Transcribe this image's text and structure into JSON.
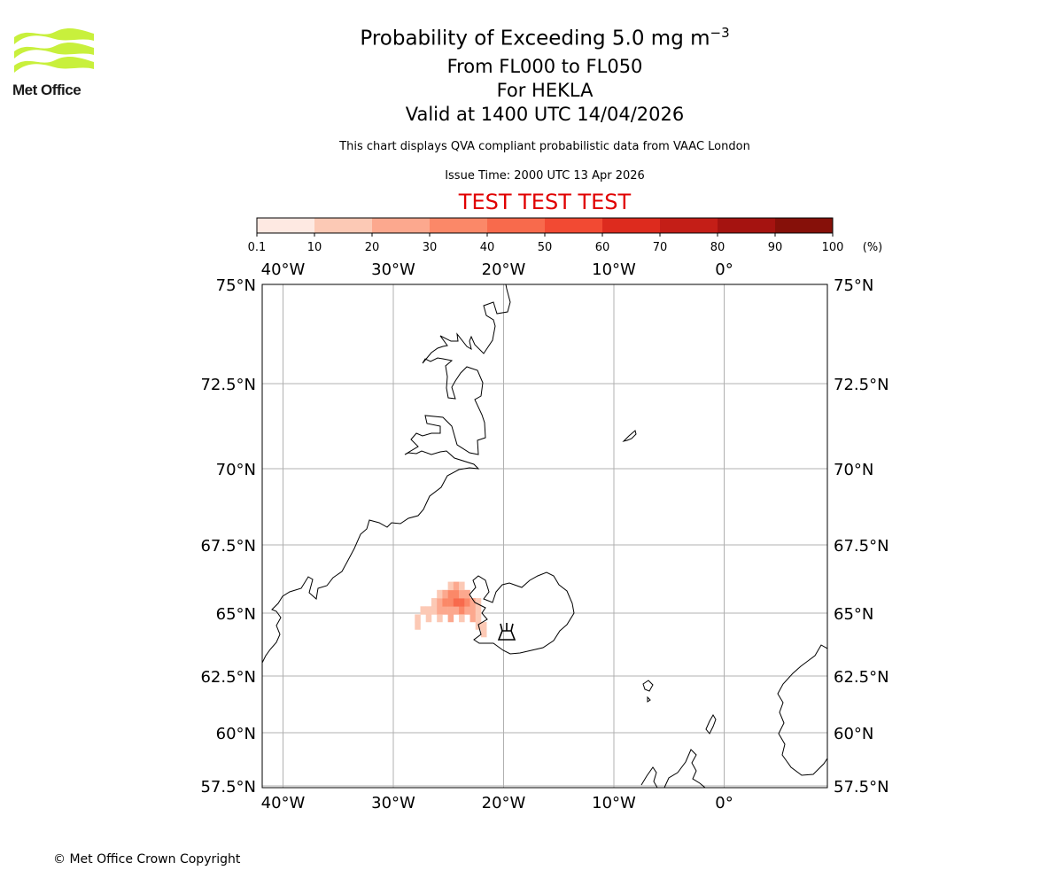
{
  "logo": {
    "text": "Met Office",
    "color": "#c8f03c"
  },
  "header": {
    "title_main": "Probability of Exceeding 5.0 mg m",
    "title_sup": "−3",
    "level_range": "From FL000 to FL050",
    "volcano": "For HEKLA",
    "valid_time": "Valid at 1400 UTC 14/04/2026",
    "description": "This chart displays QVA compliant probabilistic data from VAAC London",
    "issue_time": "Issue Time: 2000 UTC 13 Apr 2026",
    "test_banner": "TEST TEST TEST"
  },
  "colorbar": {
    "ticks": [
      "0.1",
      "10",
      "20",
      "30",
      "40",
      "50",
      "60",
      "70",
      "80",
      "90",
      "100"
    ],
    "unit": "(%)",
    "colors": [
      "#fee9e2",
      "#fcc9b5",
      "#fca88e",
      "#fb8868",
      "#f86a4c",
      "#f24a33",
      "#dd2b1e",
      "#c41e17",
      "#a51310",
      "#861009",
      "#68100a"
    ]
  },
  "map": {
    "lon_labels": [
      "40°W",
      "30°W",
      "20°W",
      "10°W",
      "0°"
    ],
    "lat_labels": [
      "75°N",
      "72.5°N",
      "70°N",
      "67.5°N",
      "65°N",
      "62.5°N",
      "60°N",
      "57.5°N"
    ],
    "lon_values": [
      -40,
      -30,
      -20,
      -10,
      0
    ],
    "lat_values": [
      75,
      72.5,
      70,
      67.5,
      65,
      62.5,
      60,
      57.5
    ],
    "volcano_symbol": "volcano-icon",
    "plume_cells": [
      {
        "lon": -27.3,
        "lat": 65.1,
        "p": 12
      },
      {
        "lon": -26.8,
        "lat": 65.1,
        "p": 15
      },
      {
        "lon": -26.3,
        "lat": 65.1,
        "p": 18
      },
      {
        "lon": -25.8,
        "lat": 65.1,
        "p": 20
      },
      {
        "lon": -25.3,
        "lat": 65.1,
        "p": 24
      },
      {
        "lon": -24.8,
        "lat": 65.1,
        "p": 28
      },
      {
        "lon": -24.3,
        "lat": 65.1,
        "p": 22
      },
      {
        "lon": -23.8,
        "lat": 65.1,
        "p": 30
      },
      {
        "lon": -23.3,
        "lat": 65.1,
        "p": 25
      },
      {
        "lon": -22.8,
        "lat": 65.1,
        "p": 20
      },
      {
        "lon": -22.3,
        "lat": 65.1,
        "p": 14
      },
      {
        "lon": -26.3,
        "lat": 65.4,
        "p": 14
      },
      {
        "lon": -25.8,
        "lat": 65.4,
        "p": 22
      },
      {
        "lon": -25.3,
        "lat": 65.4,
        "p": 30
      },
      {
        "lon": -24.8,
        "lat": 65.4,
        "p": 35
      },
      {
        "lon": -24.3,
        "lat": 65.4,
        "p": 42
      },
      {
        "lon": -23.8,
        "lat": 65.4,
        "p": 40
      },
      {
        "lon": -23.3,
        "lat": 65.4,
        "p": 32
      },
      {
        "lon": -22.8,
        "lat": 65.4,
        "p": 22
      },
      {
        "lon": -22.3,
        "lat": 65.4,
        "p": 16
      },
      {
        "lon": -25.8,
        "lat": 65.7,
        "p": 18
      },
      {
        "lon": -25.3,
        "lat": 65.7,
        "p": 26
      },
      {
        "lon": -24.8,
        "lat": 65.7,
        "p": 34
      },
      {
        "lon": -24.3,
        "lat": 65.7,
        "p": 38
      },
      {
        "lon": -23.8,
        "lat": 65.7,
        "p": 28
      },
      {
        "lon": -23.3,
        "lat": 65.7,
        "p": 20
      },
      {
        "lon": -24.8,
        "lat": 66.0,
        "p": 18
      },
      {
        "lon": -24.3,
        "lat": 66.0,
        "p": 22
      },
      {
        "lon": -23.8,
        "lat": 66.0,
        "p": 16
      },
      {
        "lon": -27.8,
        "lat": 64.8,
        "p": 10
      },
      {
        "lon": -26.8,
        "lat": 64.8,
        "p": 12
      },
      {
        "lon": -25.8,
        "lat": 64.8,
        "p": 15
      },
      {
        "lon": -24.8,
        "lat": 64.8,
        "p": 20
      },
      {
        "lon": -23.8,
        "lat": 64.8,
        "p": 18
      },
      {
        "lon": -22.8,
        "lat": 64.8,
        "p": 20
      },
      {
        "lon": -22.3,
        "lat": 64.8,
        "p": 16
      },
      {
        "lon": -27.8,
        "lat": 64.5,
        "p": 10
      },
      {
        "lon": -22.3,
        "lat": 64.5,
        "p": 14
      },
      {
        "lon": -21.8,
        "lat": 64.2,
        "p": 12
      },
      {
        "lon": -21.8,
        "lat": 64.5,
        "p": 14
      }
    ]
  },
  "footer": {
    "copyright": "© Met Office Crown Copyright"
  }
}
